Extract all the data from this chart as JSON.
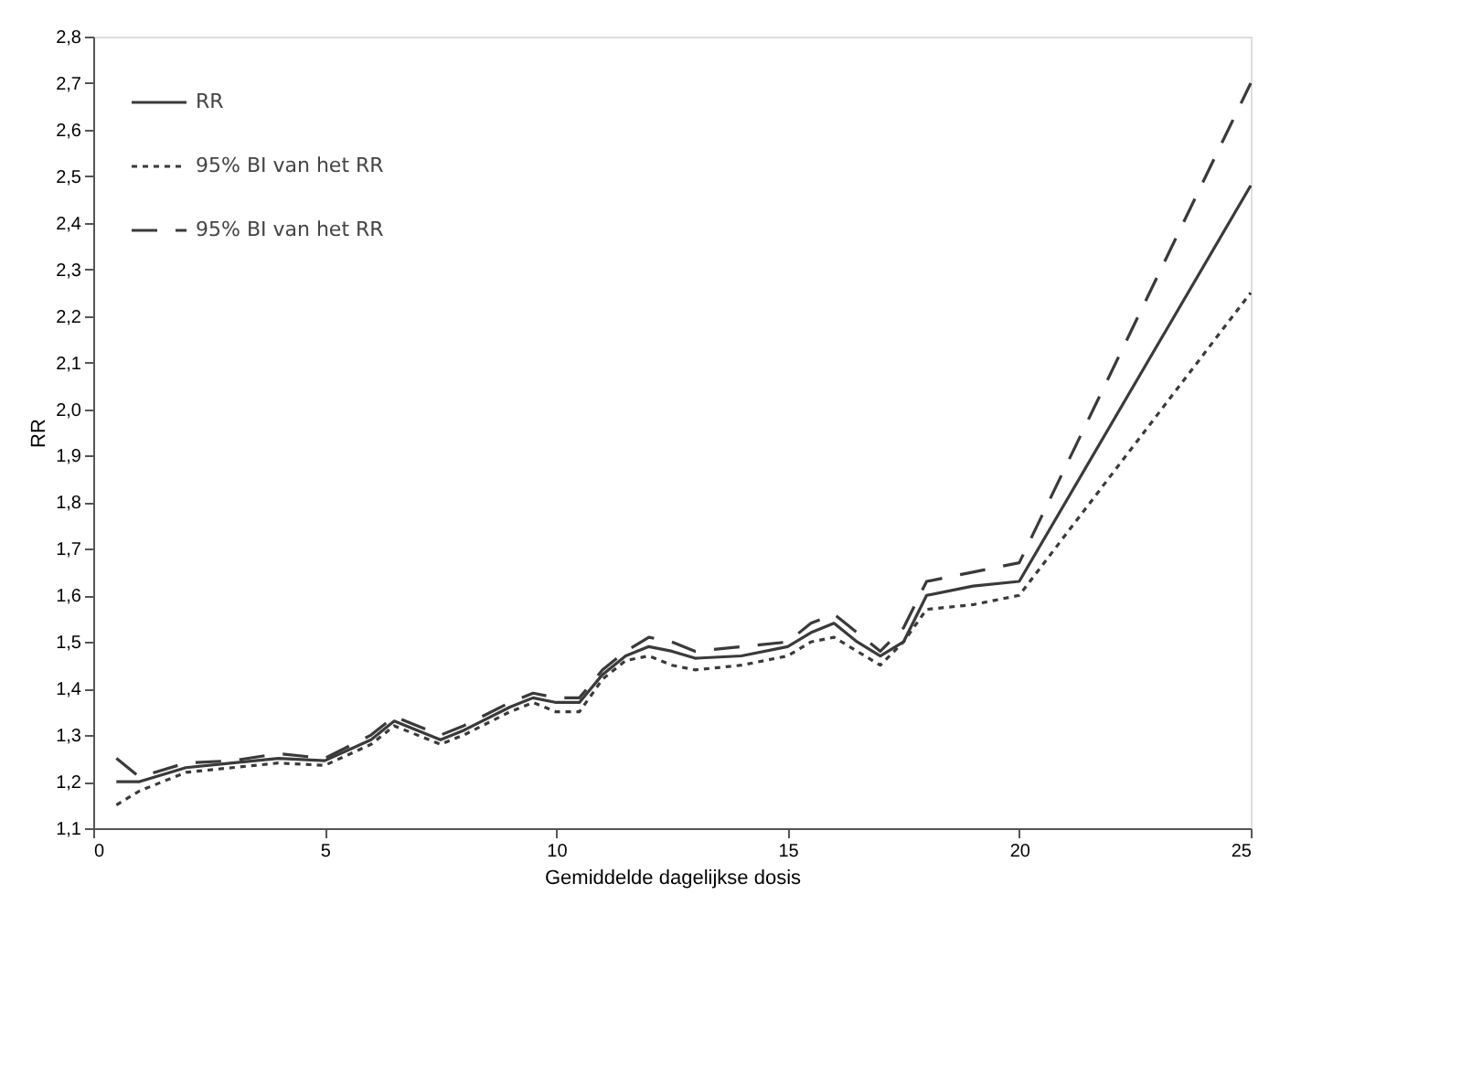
{
  "chart_data": {
    "type": "line",
    "xlabel": "Gemiddelde dagelijkse dosis",
    "ylabel": "RR",
    "xlim": [
      0,
      25
    ],
    "xticks": [
      0,
      5,
      10,
      15,
      20,
      25
    ],
    "ylim": [
      1.1,
      2.8
    ],
    "yticks": [
      {
        "value": 1.1,
        "label": "1,1"
      },
      {
        "value": 1.2,
        "label": "1,2"
      },
      {
        "value": 1.3,
        "label": "1,3"
      },
      {
        "value": 1.4,
        "label": "1,4"
      },
      {
        "value": 1.5,
        "label": "1,5"
      },
      {
        "value": 1.6,
        "label": "1,6"
      },
      {
        "value": 1.7,
        "label": "1,7"
      },
      {
        "value": 1.8,
        "label": "1,8"
      },
      {
        "value": 1.9,
        "label": "1,9"
      },
      {
        "value": 2.0,
        "label": "2,0"
      },
      {
        "value": 2.1,
        "label": "2,1"
      },
      {
        "value": 2.2,
        "label": "2,2"
      },
      {
        "value": 2.3,
        "label": "2,3"
      },
      {
        "value": 2.4,
        "label": "2,4"
      },
      {
        "value": 2.5,
        "label": "2,5"
      },
      {
        "value": 2.6,
        "label": "2,6"
      },
      {
        "value": 2.7,
        "label": "2,7"
      },
      {
        "value": 2.8,
        "label": "2,8"
      }
    ],
    "x": [
      0.5,
      1,
      2,
      3,
      4,
      5,
      6,
      6.5,
      7,
      7.5,
      8,
      9,
      9.5,
      10,
      10.5,
      11,
      11.5,
      12,
      12.5,
      13,
      14,
      15,
      15.5,
      16,
      16.5,
      17,
      17.5,
      18,
      19,
      20,
      25
    ],
    "series": [
      {
        "name": "RR",
        "color": "#3a3a3a",
        "line_style": "solid",
        "values": [
          1.2,
          1.2,
          1.23,
          1.24,
          1.25,
          1.245,
          1.29,
          1.33,
          1.31,
          1.29,
          1.31,
          1.36,
          1.38,
          1.37,
          1.37,
          1.43,
          1.47,
          1.49,
          1.48,
          1.465,
          1.47,
          1.49,
          1.52,
          1.54,
          1.5,
          1.47,
          1.5,
          1.6,
          1.62,
          1.63,
          2.48
        ]
      },
      {
        "name": "95% BI van het RR",
        "color": "#3a3a3a",
        "line_style": "dotted",
        "values": [
          1.15,
          1.18,
          1.22,
          1.23,
          1.24,
          1.235,
          1.28,
          1.32,
          1.3,
          1.28,
          1.3,
          1.35,
          1.37,
          1.35,
          1.35,
          1.42,
          1.46,
          1.47,
          1.45,
          1.44,
          1.45,
          1.47,
          1.5,
          1.51,
          1.48,
          1.45,
          1.5,
          1.57,
          1.58,
          1.6,
          2.25
        ]
      },
      {
        "name": "95% BI van het RR",
        "color": "#3a3a3a",
        "line_style": "dashed",
        "values": [
          1.25,
          1.21,
          1.24,
          1.245,
          1.26,
          1.25,
          1.3,
          1.34,
          1.32,
          1.3,
          1.32,
          1.37,
          1.39,
          1.38,
          1.38,
          1.44,
          1.48,
          1.51,
          1.5,
          1.48,
          1.49,
          1.5,
          1.54,
          1.56,
          1.52,
          1.48,
          1.53,
          1.63,
          1.65,
          1.67,
          2.7
        ]
      }
    ],
    "legend": "top left",
    "grid": false
  }
}
